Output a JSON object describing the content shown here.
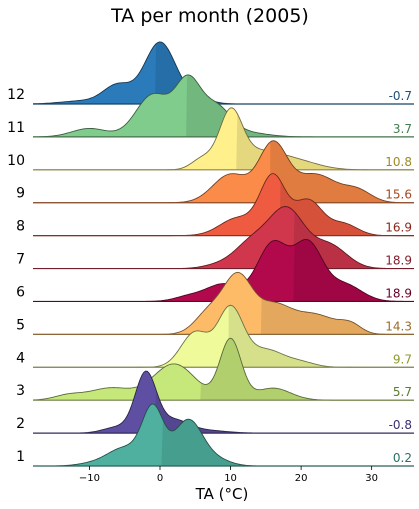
{
  "chart_data": {
    "type": "ridgeline",
    "title": "TA per month (2005)",
    "xlabel": "TA (°C)",
    "xlim": [
      -18,
      36
    ],
    "xticks": [
      -10,
      0,
      10,
      20,
      30
    ],
    "series": [
      {
        "name": "12",
        "median": -0.7,
        "median_label": "-0.7",
        "color": "#2b7bba",
        "label_color": "#1f4e7a",
        "components": [
          [
            0,
            2.2,
            1.0
          ],
          [
            -6,
            2.0,
            0.3
          ],
          [
            -11,
            3.0,
            0.05
          ],
          [
            5,
            2.0,
            0.1
          ]
        ]
      },
      {
        "name": "11",
        "median": 3.7,
        "median_label": "3.7",
        "color": "#7fcc8c",
        "label_color": "#3f7f4f",
        "components": [
          [
            4,
            1.8,
            0.95
          ],
          [
            -1,
            2.4,
            0.75
          ],
          [
            8,
            2.0,
            0.5
          ],
          [
            -10,
            2.5,
            0.15
          ],
          [
            12,
            3.0,
            0.08
          ]
        ]
      },
      {
        "name": "10",
        "median": 10.8,
        "median_label": "10.8",
        "color": "#fff08c",
        "label_color": "#9c8c22",
        "components": [
          [
            10,
            1.6,
            1.0
          ],
          [
            14,
            3.5,
            0.35
          ],
          [
            20,
            3.0,
            0.12
          ],
          [
            6,
            1.5,
            0.2
          ]
        ]
      },
      {
        "name": "9",
        "median": 15.6,
        "median_label": "15.6",
        "color": "#fb8b48",
        "label_color": "#a5481f",
        "components": [
          [
            16,
            2.0,
            1.0
          ],
          [
            10,
            2.5,
            0.5
          ],
          [
            22,
            3.0,
            0.5
          ],
          [
            28,
            2.0,
            0.2
          ]
        ]
      },
      {
        "name": "8",
        "median": 16.9,
        "median_label": "16.9",
        "color": "#ef5b40",
        "label_color": "#8e2519",
        "components": [
          [
            16,
            1.8,
            1.0
          ],
          [
            21,
            2.0,
            0.6
          ],
          [
            11,
            2.5,
            0.3
          ],
          [
            26,
            2.0,
            0.2
          ]
        ]
      },
      {
        "name": "7",
        "median": 18.9,
        "median_label": "18.9",
        "color": "#d0364c",
        "label_color": "#7d1d2c",
        "components": [
          [
            18,
            2.5,
            1.0
          ],
          [
            13,
            2.5,
            0.45
          ],
          [
            24,
            2.5,
            0.4
          ],
          [
            8,
            2.0,
            0.05
          ]
        ]
      },
      {
        "name": "6",
        "median": 18.9,
        "median_label": "18.9",
        "color": "#b2084c",
        "label_color": "#650026",
        "components": [
          [
            16,
            2.2,
            1.0
          ],
          [
            21,
            2.0,
            0.95
          ],
          [
            9,
            2.5,
            0.3
          ],
          [
            26,
            2.5,
            0.3
          ],
          [
            4,
            2.0,
            0.08
          ]
        ]
      },
      {
        "name": "5",
        "median": 14.3,
        "median_label": "14.3",
        "color": "#fdbb68",
        "label_color": "#9e6a26",
        "components": [
          [
            11,
            2.0,
            1.0
          ],
          [
            7,
            2.0,
            0.4
          ],
          [
            16,
            2.5,
            0.5
          ],
          [
            22,
            3.0,
            0.35
          ],
          [
            27,
            1.5,
            0.15
          ]
        ]
      },
      {
        "name": "4",
        "median": 9.7,
        "median_label": "9.7",
        "color": "#effa9a",
        "label_color": "#8e9a28",
        "components": [
          [
            10,
            1.8,
            1.0
          ],
          [
            5,
            2.0,
            0.6
          ],
          [
            15,
            2.5,
            0.3
          ],
          [
            20,
            2.0,
            0.08
          ]
        ]
      },
      {
        "name": "3",
        "median": 5.7,
        "median_label": "5.7",
        "color": "#c6e87a",
        "label_color": "#5c7d2a",
        "components": [
          [
            10,
            1.5,
            1.0
          ],
          [
            2,
            3.0,
            0.6
          ],
          [
            -7,
            3.0,
            0.2
          ],
          [
            16,
            2.5,
            0.2
          ],
          [
            -13,
            2.0,
            0.08
          ]
        ]
      },
      {
        "name": "2",
        "median": -0.8,
        "median_label": "-0.8",
        "color": "#5e4fa2",
        "label_color": "#3b2f70",
        "components": [
          [
            -2,
            1.5,
            1.0
          ],
          [
            2,
            2.0,
            0.2
          ],
          [
            -6,
            2.0,
            0.1
          ],
          [
            6,
            3.0,
            0.05
          ]
        ]
      },
      {
        "name": "1",
        "median": 0.2,
        "median_label": "0.2",
        "color": "#4fb0a0",
        "label_color": "#2a7063",
        "components": [
          [
            -1,
            1.5,
            0.9
          ],
          [
            4,
            2.0,
            0.75
          ],
          [
            -5,
            2.5,
            0.3
          ],
          [
            8,
            2.0,
            0.1
          ],
          [
            -10,
            2.0,
            0.03
          ]
        ]
      }
    ]
  }
}
